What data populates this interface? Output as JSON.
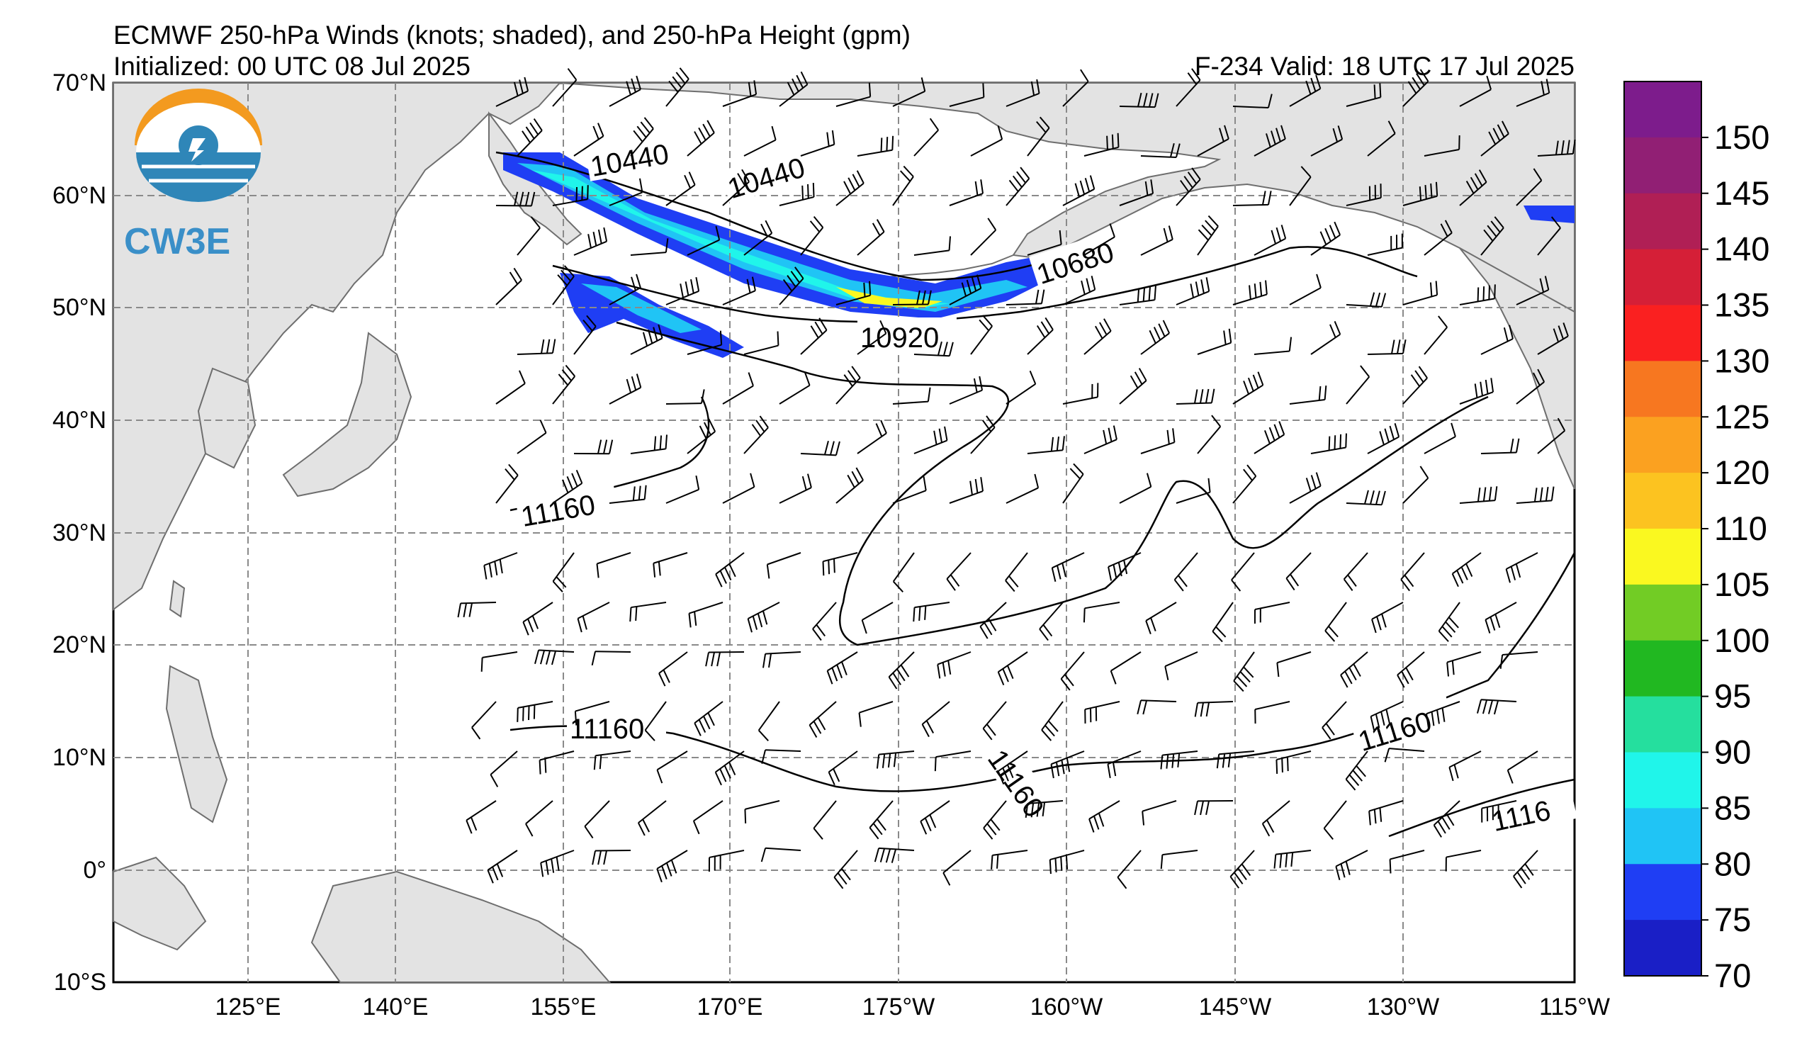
{
  "header": {
    "title": "ECMWF 250-hPa Winds (knots; shaded), and 250-hPa Height (gpm)",
    "initialized": "Initialized: 00 UTC 08 Jul 2025",
    "valid": "F-234  Valid: 18 UTC 17 Jul 2025"
  },
  "logo": {
    "text": "CW3E",
    "colors": {
      "sun": "#f39a1f",
      "sea": "#2f86b8"
    }
  },
  "map": {
    "lat_labels": [
      "70°N",
      "60°N",
      "50°N",
      "40°N",
      "30°N",
      "20°N",
      "10°N",
      "0°",
      "10°S"
    ],
    "lon_labels": [
      "125°E",
      "140°E",
      "155°E",
      "170°E",
      "175°W",
      "160°W",
      "145°W",
      "130°W",
      "115°W"
    ],
    "land_color": "#e3e3e3",
    "coast_color": "#6e6e6e",
    "grid_color": "#8a8a8a",
    "contour_labels": [
      "10440",
      "10440",
      "10680",
      "10920",
      "11160",
      "11160",
      "11160",
      "11160",
      "1116"
    ]
  },
  "colorbar": {
    "tick_labels": [
      "150",
      "145",
      "140",
      "135",
      "130",
      "125",
      "120",
      "110",
      "105",
      "100",
      "95",
      "90",
      "85",
      "80",
      "75",
      "70"
    ],
    "colors": [
      "#7d1c8c",
      "#911f74",
      "#b01f55",
      "#d51f37",
      "#fa2020",
      "#f77720",
      "#fba120",
      "#fcc320",
      "#faf820",
      "#72cc25",
      "#21b821",
      "#25df9e",
      "#20f5ea",
      "#20c4f5",
      "#1f3ef4",
      "#1a1fc6"
    ]
  }
}
